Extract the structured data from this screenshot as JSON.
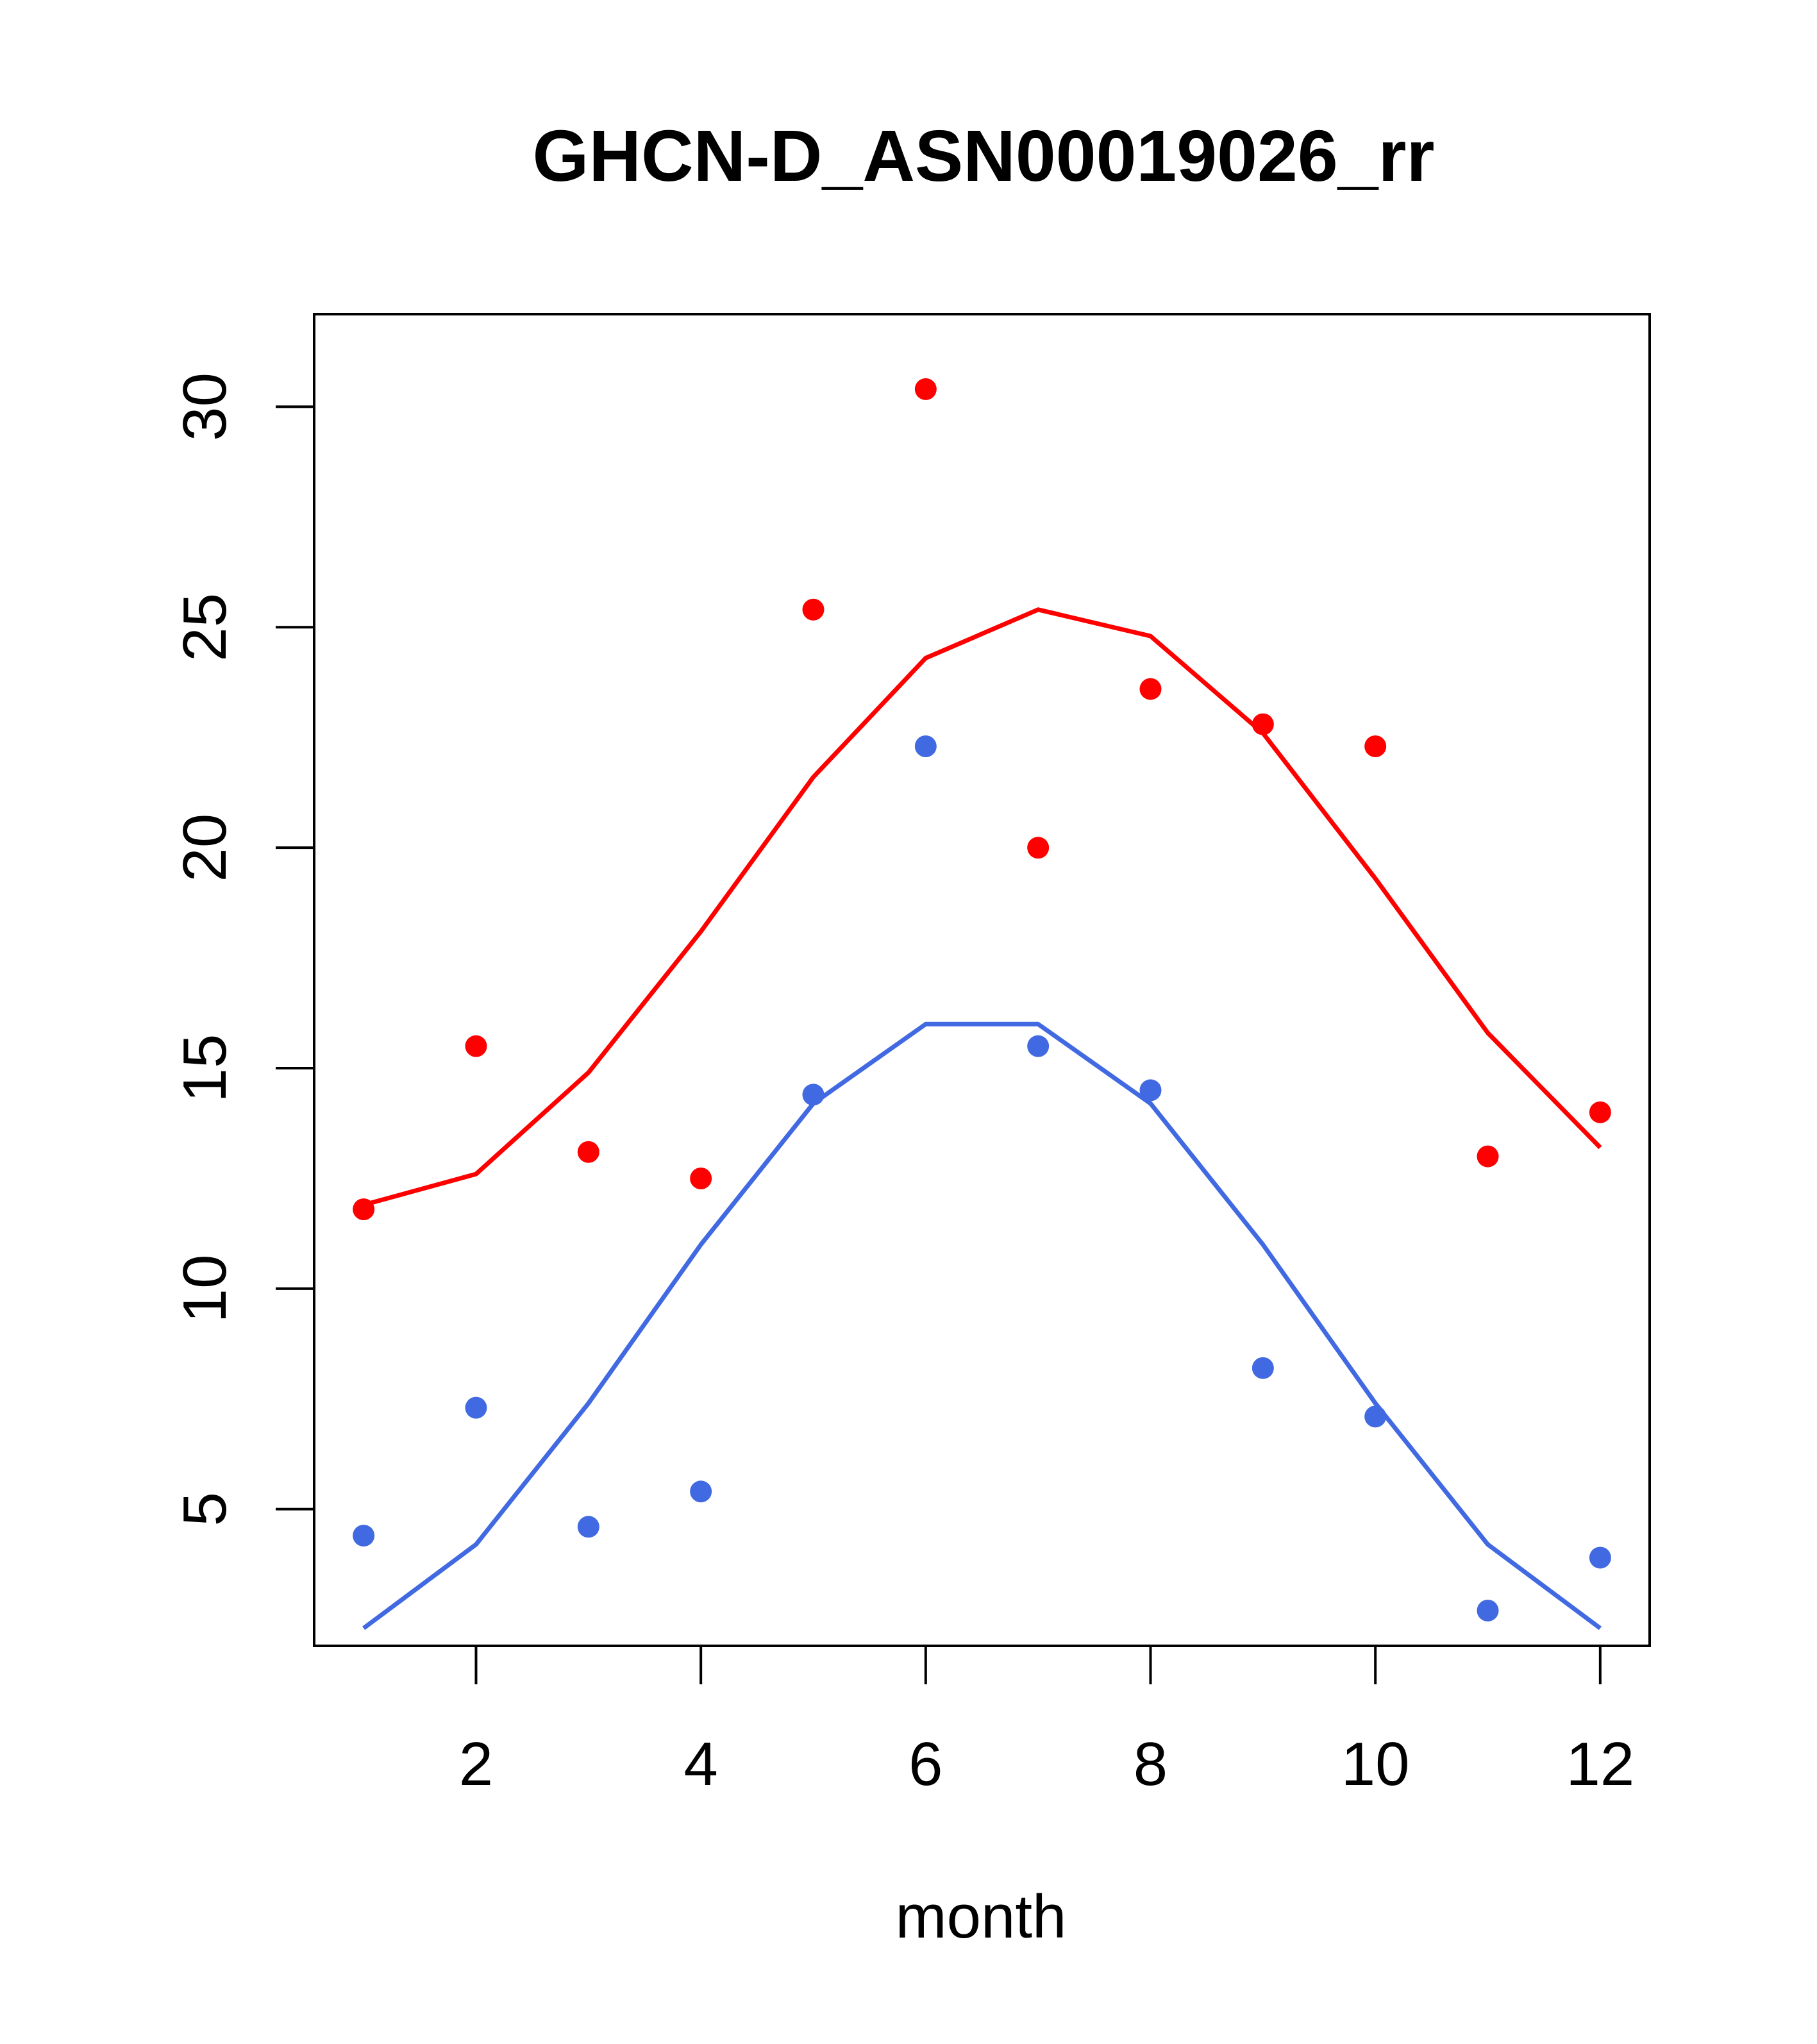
{
  "chart_data": {
    "type": "line",
    "title": "GHCN-D_ASN00019026_rr",
    "xlabel": "month",
    "ylabel": "",
    "xlim": [
      0.56,
      12.44
    ],
    "ylim": [
      1.9,
      32.1
    ],
    "x_ticks": [
      2,
      4,
      6,
      8,
      10,
      12
    ],
    "y_ticks": [
      5,
      10,
      15,
      20,
      25,
      30
    ],
    "grid": false,
    "legend": "none",
    "x": [
      1,
      2,
      3,
      4,
      5,
      6,
      7,
      8,
      9,
      10,
      11,
      12
    ],
    "series": [
      {
        "color": "#ff0000",
        "line": [
          11.9,
          12.6,
          14.9,
          18.1,
          21.6,
          24.3,
          25.4,
          24.8,
          22.6,
          19.3,
          15.8,
          13.2
        ],
        "points": [
          11.8,
          15.5,
          13.1,
          12.5,
          25.4,
          30.4,
          20.0,
          23.6,
          22.8,
          22.3,
          13.0,
          14.0
        ]
      },
      {
        "color": "#4169e1",
        "line": [
          2.3,
          4.2,
          7.4,
          11.0,
          14.2,
          16.0,
          16.0,
          14.2,
          11.0,
          7.4,
          4.2,
          2.3
        ],
        "points": [
          4.4,
          7.3,
          4.6,
          5.4,
          14.4,
          22.3,
          15.5,
          14.5,
          8.2,
          7.1,
          2.7,
          3.9
        ]
      }
    ]
  }
}
